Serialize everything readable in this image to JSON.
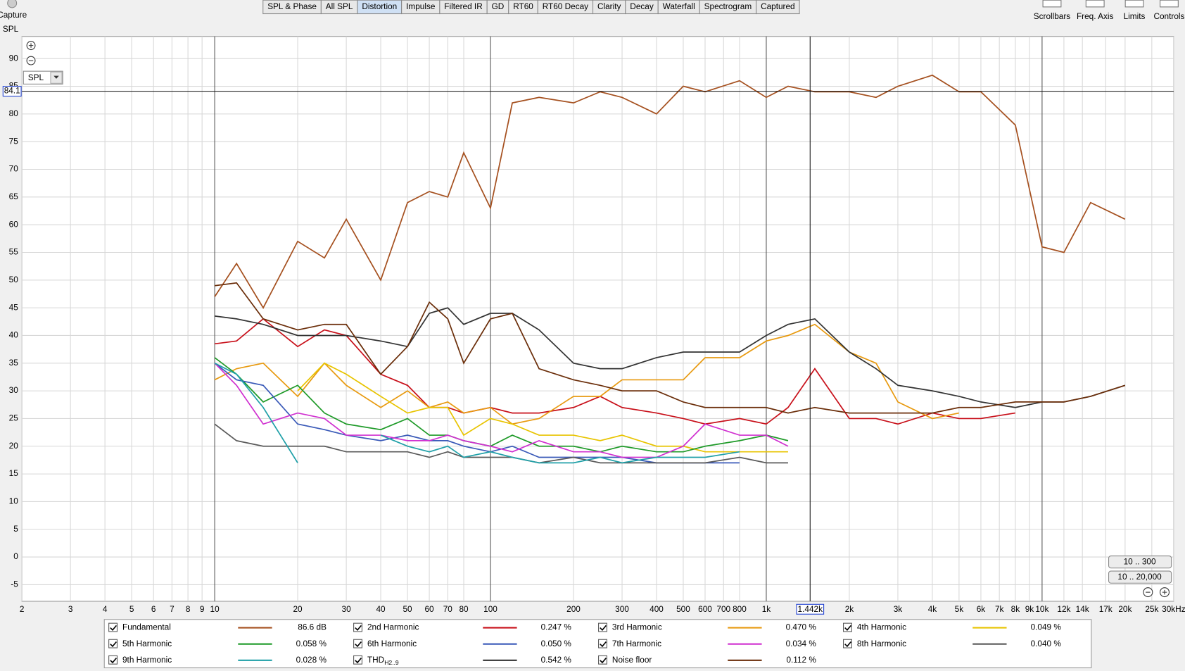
{
  "app": {
    "capture": "Capture",
    "tabs": [
      "SPL & Phase",
      "All SPL",
      "Distortion",
      "Impulse",
      "Filtered IR",
      "GD",
      "RT60",
      "RT60 Decay",
      "Clarity",
      "Decay",
      "Waterfall",
      "Spectrogram",
      "Captured"
    ],
    "active_tab": "Distortion",
    "tools": [
      "Scrollbars",
      "Freq. Axis",
      "Limits",
      "Controls"
    ],
    "selector": "SPL",
    "range_buttons": [
      "10 .. 300",
      "10 .. 20,000"
    ]
  },
  "chart_data": {
    "type": "line",
    "y_label": "SPL",
    "log_x": true,
    "grid": true,
    "xlim": [
      2,
      30000
    ],
    "ylim": [
      -8,
      94
    ],
    "xticks": [
      2,
      3,
      4,
      5,
      6,
      7,
      8,
      9,
      10,
      20,
      30,
      40,
      50,
      60,
      70,
      80,
      100,
      200,
      300,
      400,
      500,
      600,
      700,
      800,
      {
        "value": 1000,
        "label": "1k"
      },
      {
        "value": 2000,
        "label": "2k"
      },
      {
        "value": 3000,
        "label": "3k"
      },
      {
        "value": 4000,
        "label": "4k"
      },
      {
        "value": 5000,
        "label": "5k"
      },
      {
        "value": 6000,
        "label": "6k"
      },
      {
        "value": 7000,
        "label": "7k"
      },
      {
        "value": 8000,
        "label": "8k"
      },
      {
        "value": 9000,
        "label": "9k"
      },
      {
        "value": 10000,
        "label": "10k"
      },
      {
        "value": 12000,
        "label": "12k"
      },
      {
        "value": 14000,
        "label": "14k"
      },
      {
        "value": 17000,
        "label": "17k"
      },
      {
        "value": 20000,
        "label": "20k"
      },
      {
        "value": 25000,
        "label": "25k"
      },
      {
        "value": 30000,
        "label": "30kHz"
      }
    ],
    "yticks": [
      -5,
      0,
      5,
      10,
      15,
      20,
      25,
      30,
      35,
      40,
      45,
      50,
      55,
      60,
      65,
      70,
      75,
      80,
      85,
      90
    ],
    "cursor": {
      "x": {
        "value": 1442,
        "label": "1.442k"
      },
      "y": 84.1
    },
    "x": [
      10,
      12,
      15,
      20,
      25,
      30,
      40,
      50,
      60,
      70,
      80,
      100,
      120,
      150,
      200,
      250,
      300,
      400,
      500,
      600,
      800,
      1000,
      1200,
      1500,
      2000,
      2500,
      3000,
      4000,
      5000,
      6000,
      8000,
      10000,
      12000,
      15000,
      20000
    ],
    "series": [
      {
        "name": "Fundamental",
        "color": "#a5501f",
        "readout": "86.6 dB",
        "values": [
          47,
          53,
          45,
          57,
          54,
          61,
          50,
          64,
          66,
          65,
          73,
          63,
          82,
          83,
          82,
          84,
          83,
          80,
          85,
          84,
          86,
          83,
          85,
          84,
          84,
          83,
          85,
          87,
          84,
          84,
          78,
          56,
          55,
          64,
          61
        ]
      },
      {
        "name": "2nd Harmonic",
        "color": "#c8101a",
        "readout": "0.247 %",
        "values": [
          38.5,
          39,
          43,
          38,
          41,
          40,
          33,
          31,
          27,
          27,
          26,
          27,
          26,
          26,
          27,
          29,
          27,
          26,
          25,
          24,
          25,
          24,
          27,
          34,
          25,
          25,
          24,
          26,
          25,
          25,
          26,
          null,
          null,
          null,
          null
        ]
      },
      {
        "name": "3rd Harmonic",
        "color": "#e89a10",
        "readout": "0.470 %",
        "values": [
          32,
          34,
          35,
          29,
          35,
          31,
          27,
          30,
          27,
          28,
          26,
          27,
          24,
          25,
          29,
          29,
          32,
          32,
          32,
          36,
          36,
          39,
          40,
          42,
          37,
          35,
          28,
          25,
          26,
          null,
          null,
          null,
          null,
          null,
          null
        ]
      },
      {
        "name": "4th Harmonic",
        "color": "#e8c400",
        "readout": "0.049 %",
        "values": [
          null,
          null,
          null,
          30,
          35,
          33,
          29,
          26,
          27,
          27,
          22,
          25,
          24,
          22,
          22,
          21,
          22,
          20,
          20,
          19,
          19,
          19,
          19,
          null,
          null,
          null,
          null,
          null,
          null,
          null,
          null,
          null,
          null,
          null,
          null
        ]
      },
      {
        "name": "5th Harmonic",
        "color": "#1e9a28",
        "readout": "0.058 %",
        "values": [
          36,
          33,
          28,
          31,
          26,
          24,
          23,
          25,
          22,
          22,
          21,
          20,
          22,
          20,
          20,
          19,
          20,
          19,
          19,
          20,
          21,
          22,
          21,
          null,
          null,
          null,
          null,
          null,
          null,
          null,
          null,
          null,
          null,
          null,
          null
        ]
      },
      {
        "name": "6th Harmonic",
        "color": "#3a5ab8",
        "readout": "0.050 %",
        "values": [
          35,
          32,
          31,
          24,
          23,
          22,
          21,
          22,
          21,
          21,
          20,
          19,
          20,
          18,
          18,
          18,
          18,
          17,
          17,
          17,
          17,
          null,
          null,
          null,
          null,
          null,
          null,
          null,
          null,
          null,
          null,
          null,
          null,
          null,
          null
        ]
      },
      {
        "name": "7th Harmonic",
        "color": "#d030d0",
        "readout": "0.034 %",
        "values": [
          35,
          31,
          24,
          26,
          25,
          22,
          22,
          21,
          21,
          22,
          21,
          20,
          19,
          21,
          19,
          19,
          18,
          18,
          20,
          24,
          22,
          22,
          20,
          null,
          null,
          null,
          null,
          null,
          null,
          null,
          null,
          null,
          null,
          null,
          null
        ]
      },
      {
        "name": "8th Harmonic",
        "color": "#5a5a5a",
        "readout": "0.040 %",
        "values": [
          24,
          21,
          20,
          20,
          20,
          19,
          19,
          19,
          18,
          19,
          18,
          18,
          18,
          17,
          18,
          17,
          17,
          17,
          17,
          17,
          18,
          17,
          17,
          null,
          null,
          null,
          null,
          null,
          null,
          null,
          null,
          null,
          null,
          null,
          null
        ]
      },
      {
        "name": "9th Harmonic",
        "color": "#20a0a8",
        "readout": "0.028 %",
        "values": [
          35,
          33,
          27,
          17,
          null,
          null,
          22,
          20,
          19,
          20,
          18,
          19,
          18,
          17,
          17,
          18,
          17,
          18,
          18,
          18,
          19,
          null,
          null,
          null,
          null,
          null,
          null,
          null,
          null,
          null,
          null,
          null,
          null,
          null,
          null
        ]
      },
      {
        "name": "THD",
        "name_sub": "H2..9",
        "color": "#333333",
        "readout": "0.542 %",
        "values": [
          43.5,
          43,
          42,
          40,
          40,
          40,
          39,
          38,
          44,
          45,
          42,
          44,
          44,
          41,
          35,
          34,
          34,
          36,
          37,
          37,
          37,
          40,
          42,
          43,
          37,
          34,
          31,
          30,
          29,
          28,
          27,
          28,
          28,
          29,
          31
        ]
      },
      {
        "name": "Noise floor",
        "color": "#6b2e0a",
        "readout": "0.112 %",
        "values": [
          49,
          49.5,
          43,
          41,
          42,
          42,
          33,
          38,
          46,
          43,
          35,
          43,
          44,
          34,
          32,
          31,
          30,
          30,
          28,
          27,
          27,
          27,
          26,
          27,
          26,
          26,
          26,
          26,
          27,
          27,
          28,
          28,
          28,
          29,
          31
        ]
      }
    ]
  }
}
